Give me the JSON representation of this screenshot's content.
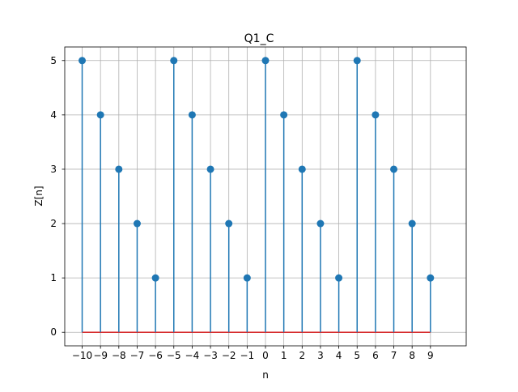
{
  "chart_data": {
    "type": "stem",
    "title": "Q1_C",
    "xlabel": "n",
    "ylabel": "Z[n]",
    "x": [
      -10,
      -9,
      -8,
      -7,
      -6,
      -5,
      -4,
      -3,
      -2,
      -1,
      0,
      1,
      2,
      3,
      4,
      5,
      6,
      7,
      8,
      9
    ],
    "values": [
      5,
      4,
      3,
      2,
      1,
      5,
      4,
      3,
      2,
      1,
      5,
      4,
      3,
      2,
      1,
      5,
      4,
      3,
      2,
      1
    ],
    "x_ticks": [
      -10,
      -9,
      -8,
      -7,
      -6,
      -5,
      -4,
      -3,
      -2,
      -1,
      0,
      1,
      2,
      3,
      4,
      5,
      6,
      7,
      8,
      9
    ],
    "x_tick_labels": [
      "−10",
      "−9",
      "−8",
      "−7",
      "−6",
      "−5",
      "−4",
      "−3",
      "−2",
      "−1",
      "0",
      "1",
      "2",
      "3",
      "4",
      "5",
      "6",
      "7",
      "8",
      "9"
    ],
    "y_ticks": [
      0,
      1,
      2,
      3,
      4,
      5
    ],
    "y_tick_labels": [
      "0",
      "1",
      "2",
      "3",
      "4",
      "5"
    ],
    "xlim": [
      -10.95,
      10.95
    ],
    "ylim": [
      -0.25,
      5.25
    ],
    "grid": true,
    "colors": {
      "stem": "#1f77b4",
      "marker": "#1f77b4",
      "baseline": "#d62728",
      "grid": "#b0b0b0",
      "axes": "#000000"
    }
  }
}
